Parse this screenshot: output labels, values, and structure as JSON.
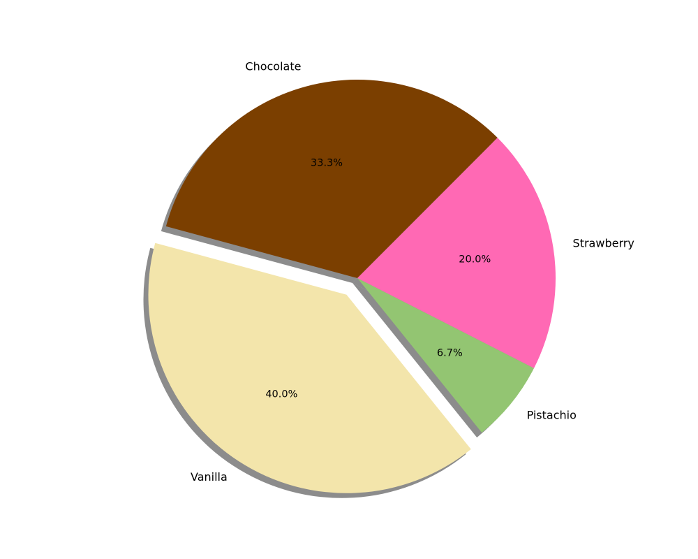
{
  "chart_data": {
    "type": "pie",
    "categories": [
      "Chocolate",
      "Vanilla",
      "Pistachio",
      "Strawberry"
    ],
    "values": [
      33.3,
      40.0,
      6.7,
      20.0
    ],
    "percent_labels": [
      "33.3%",
      "40.0%",
      "6.7%",
      "20.0%"
    ],
    "colors": [
      "#7B3F00",
      "#F3E5AB",
      "#93C572",
      "#FF69B4"
    ],
    "exploded": [
      "Vanilla"
    ],
    "shadow": true,
    "start_angle": 45,
    "direction": "counterclockwise",
    "title": "",
    "legend": "none"
  }
}
